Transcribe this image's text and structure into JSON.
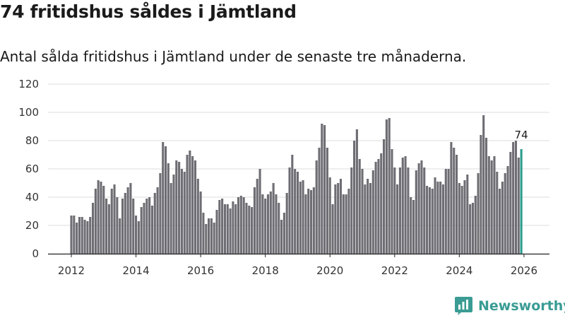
{
  "header": {
    "title": "74 fritidshus såldes i Jämtland",
    "subtitle": "Antal sålda fritidshus i Jämtland under de senaste tre månaderna."
  },
  "brand": {
    "name": "Newsworthy"
  },
  "colors": {
    "bar": "#6e6d73",
    "highlight": "#2a9d8f",
    "grid": "#dddddd",
    "axis": "#222222",
    "brand": "#3a9c94"
  },
  "chart_data": {
    "type": "bar",
    "title": "74 fritidshus såldes i Jämtland",
    "subtitle": "Antal sålda fritidshus i Jämtland under de senaste tre månaderna.",
    "xlabel": "",
    "ylabel": "",
    "ylim": [
      0,
      120
    ],
    "yticks": [
      0,
      20,
      40,
      60,
      80,
      100,
      120
    ],
    "xticks": [
      "2012",
      "2014",
      "2016",
      "2018",
      "2020",
      "2022",
      "2024",
      "2026"
    ],
    "grid": true,
    "start": "2012-01",
    "frequency": "monthly",
    "highlight_label": "74",
    "values": [
      27,
      27,
      22,
      26,
      26,
      24,
      23,
      26,
      36,
      46,
      52,
      51,
      48,
      39,
      35,
      46,
      49,
      40,
      25,
      39,
      43,
      47,
      50,
      39,
      27,
      23,
      33,
      36,
      39,
      40,
      34,
      43,
      47,
      57,
      79,
      76,
      64,
      50,
      56,
      66,
      65,
      60,
      58,
      70,
      73,
      69,
      66,
      53,
      44,
      29,
      21,
      25,
      25,
      22,
      31,
      38,
      39,
      35,
      35,
      32,
      37,
      35,
      40,
      41,
      40,
      36,
      34,
      33,
      47,
      53,
      60,
      42,
      39,
      42,
      44,
      50,
      42,
      36,
      24,
      29,
      43,
      61,
      70,
      60,
      58,
      51,
      52,
      42,
      46,
      45,
      47,
      66,
      75,
      92,
      91,
      75,
      54,
      35,
      49,
      50,
      53,
      42,
      42,
      46,
      61,
      80,
      88,
      67,
      60,
      49,
      53,
      50,
      59,
      65,
      67,
      71,
      81,
      95,
      96,
      74,
      61,
      49,
      61,
      68,
      69,
      61,
      40,
      38,
      59,
      64,
      66,
      61,
      48,
      47,
      46,
      54,
      51,
      51,
      49,
      60,
      60,
      79,
      75,
      70,
      50,
      48,
      52,
      56,
      35,
      36,
      41,
      57,
      84,
      98,
      82,
      69,
      66,
      69,
      58,
      46,
      51,
      57,
      62,
      72,
      79,
      80,
      68,
      74
    ]
  }
}
